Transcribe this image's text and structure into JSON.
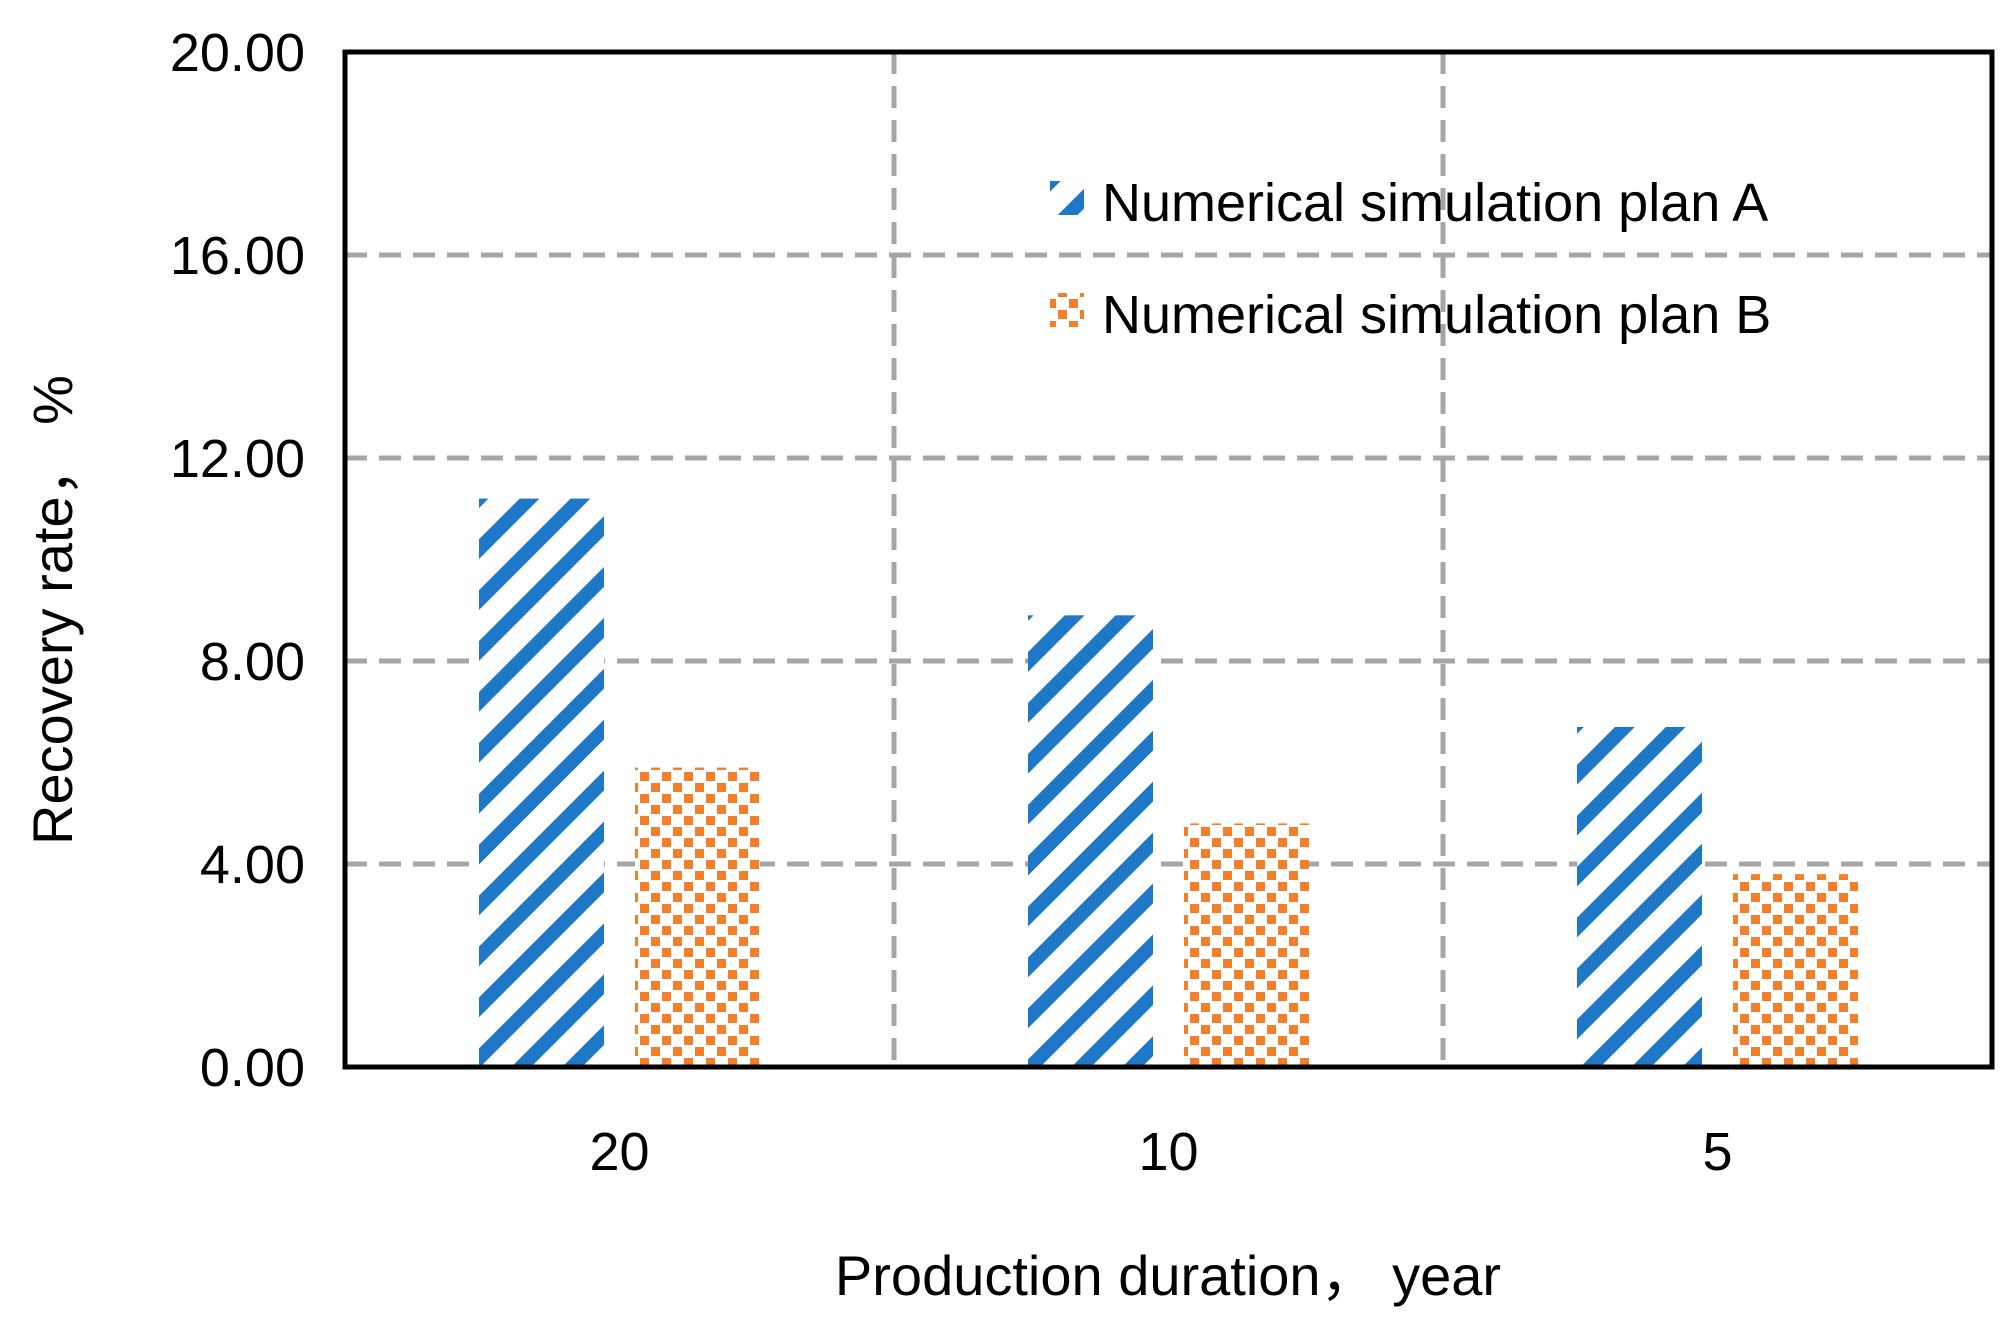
{
  "chart_data": {
    "type": "bar",
    "title": "",
    "xlabel": "Production duration， year",
    "ylabel": "Recovery rate， %",
    "categories": [
      "20",
      "10",
      "5"
    ],
    "series": [
      {
        "name": "Numerical simulation plan A",
        "values": [
          11.2,
          8.9,
          6.7
        ],
        "color": "#1f77c8",
        "pattern": "diagonal-hatch"
      },
      {
        "name": "Numerical simulation plan B",
        "values": [
          5.9,
          4.8,
          3.8
        ],
        "color": "#f47f2a",
        "pattern": "checker-dots"
      }
    ],
    "ylim": [
      0,
      20
    ],
    "yticks": [
      "0.00",
      "4.00",
      "8.00",
      "12.00",
      "16.00",
      "20.00"
    ],
    "grid": true,
    "legend_position": "top-right"
  }
}
